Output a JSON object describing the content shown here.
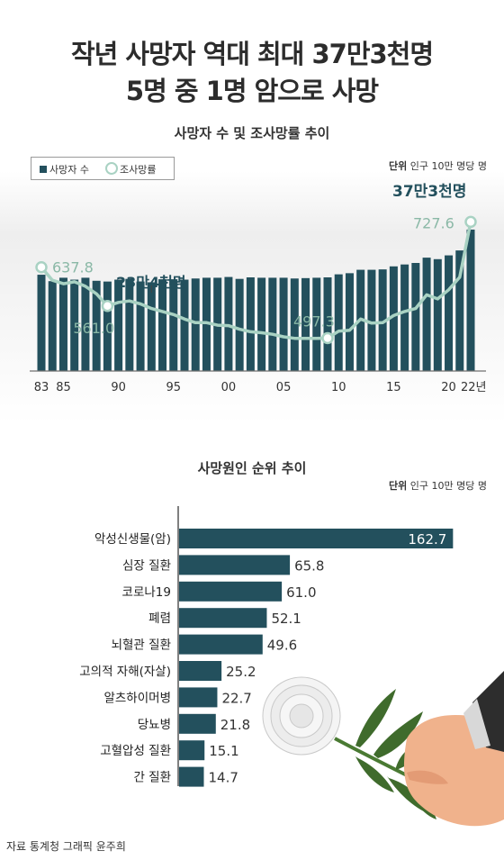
{
  "headline": {
    "line1": "작년 사망자 역대 최대 37만3천명",
    "line2": "5명 중 1명 암으로 사망"
  },
  "colors": {
    "bar": "#23505d",
    "line": "#a9d2c3",
    "line_label": "#8ab8a6",
    "leaf": "#3f6b2c",
    "flower": "#f3f3f3",
    "sleeve": "#303030"
  },
  "chart_data": [
    {
      "type": "bar",
      "title": "사망자 수 및 조사망률 추이",
      "unit_label": "단위",
      "unit_text": "인구 10만 명당 명",
      "legend": [
        "사망자 수",
        "조사망률"
      ],
      "legend_position": "top-left",
      "x": [
        1983,
        1984,
        1985,
        1986,
        1987,
        1988,
        1989,
        1990,
        1991,
        1992,
        1993,
        1994,
        1995,
        1996,
        1997,
        1998,
        1999,
        2000,
        2001,
        2002,
        2003,
        2004,
        2005,
        2006,
        2007,
        2008,
        2009,
        2010,
        2011,
        2012,
        2013,
        2014,
        2015,
        2016,
        2017,
        2018,
        2019,
        2020,
        2021,
        2022
      ],
      "x_tick_labels": [
        "83",
        "85",
        "90",
        "95",
        "00",
        "05",
        "10",
        "15",
        "20",
        "22년"
      ],
      "x_tick_years": [
        1983,
        1985,
        1990,
        1995,
        2000,
        2005,
        2010,
        2015,
        2020,
        2022
      ],
      "series": [
        {
          "name": "사망자 수",
          "values": [
            254,
            237,
            246,
            241,
            246,
            238,
            236,
            241,
            243,
            236,
            234,
            242,
            242,
            241,
            244,
            246,
            246,
            248,
            243,
            247,
            246,
            246,
            246,
            244,
            245,
            246,
            247,
            255,
            258,
            267,
            267,
            268,
            276,
            281,
            285,
            299,
            295,
            305,
            318,
            373
          ]
        },
        {
          "name": "조사망률",
          "values": [
            637.8,
            612,
            605,
            609,
            600,
            585,
            561.0,
            568,
            571,
            565,
            556,
            550,
            544,
            535,
            528,
            528,
            523,
            522,
            515,
            510,
            508,
            505,
            500,
            497,
            497,
            497,
            497.3,
            511,
            513,
            535,
            527,
            528,
            542,
            550,
            556,
            583,
            575,
            593,
            618,
            727.6
          ]
        }
      ],
      "ylim_deaths": [
        0,
        380
      ],
      "ylim_rate": [
        450,
        780
      ],
      "annotations": {
        "deaths_1993": "23만4천명",
        "deaths_2022": "37만3천명",
        "rate_1983": "637.8",
        "rate_1989": "561.0",
        "rate_2009": "497.3",
        "rate_2022": "727.6"
      }
    },
    {
      "type": "bar",
      "orientation": "horizontal",
      "title": "사망원인 순위 추이",
      "unit_label": "단위",
      "unit_text": "인구 10만 명당 명",
      "categories": [
        "악성신생물(암)",
        "심장 질환",
        "코로나19",
        "폐렴",
        "뇌혈관 질환",
        "고의적 자해(자살)",
        "알츠하이머병",
        "당뇨병",
        "고혈압성 질환",
        "간 질환"
      ],
      "values": [
        162.7,
        65.8,
        61.0,
        52.1,
        49.6,
        25.2,
        22.7,
        21.8,
        15.1,
        14.7
      ],
      "value_labels": [
        "162.7",
        "65.8",
        "61.0",
        "52.1",
        "49.6",
        "25.2",
        "22.7",
        "21.8",
        "15.1",
        "14.7"
      ],
      "xlim": [
        0,
        170
      ]
    }
  ],
  "footer": {
    "source": "자료 통계청  그래픽 윤주희",
    "logo": "news1"
  }
}
